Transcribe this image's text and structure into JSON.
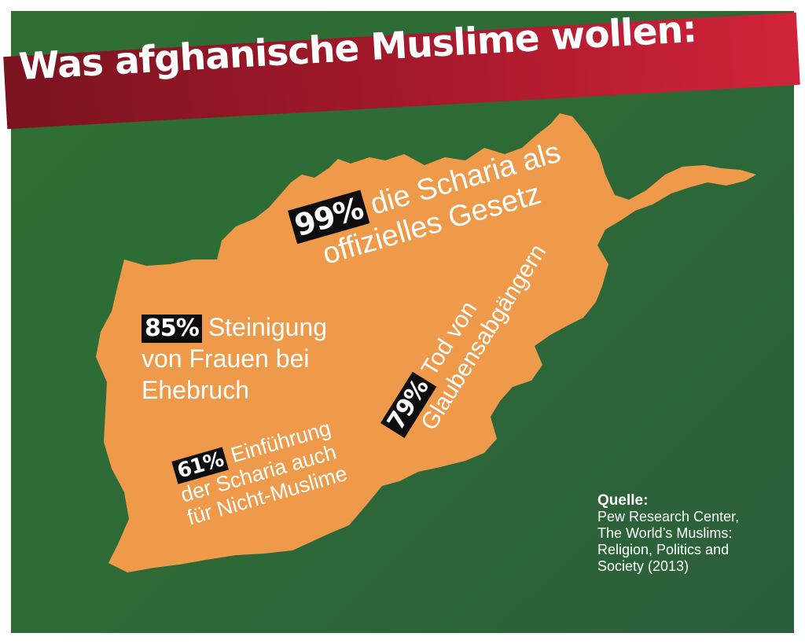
{
  "title": "Was afghanische Muslime wollen:",
  "colors": {
    "background": "#2e6a36",
    "banner": "#b01c2e",
    "map_fill": "#ef9a4a",
    "label_box": "#0d0d0d",
    "text": "#ffffff"
  },
  "stats": [
    {
      "percent": "99%",
      "lines": [
        "die Scharia als",
        "offizielles Gesetz"
      ]
    },
    {
      "percent": "85%",
      "lines": [
        "Steinigung",
        "von Frauen bei",
        "Ehebruch"
      ]
    },
    {
      "percent": "61%",
      "lines": [
        "Einführung",
        "der Scharia auch",
        "für Nicht-Muslime"
      ]
    },
    {
      "percent": "79%",
      "lines": [
        "Tod von",
        "Glaubensabgängern"
      ]
    }
  ],
  "source": {
    "label": "Quelle:",
    "lines": [
      "Pew Research Center,",
      "The World’s Muslims:",
      "Religion, Politics and",
      "Society (2013)"
    ]
  }
}
